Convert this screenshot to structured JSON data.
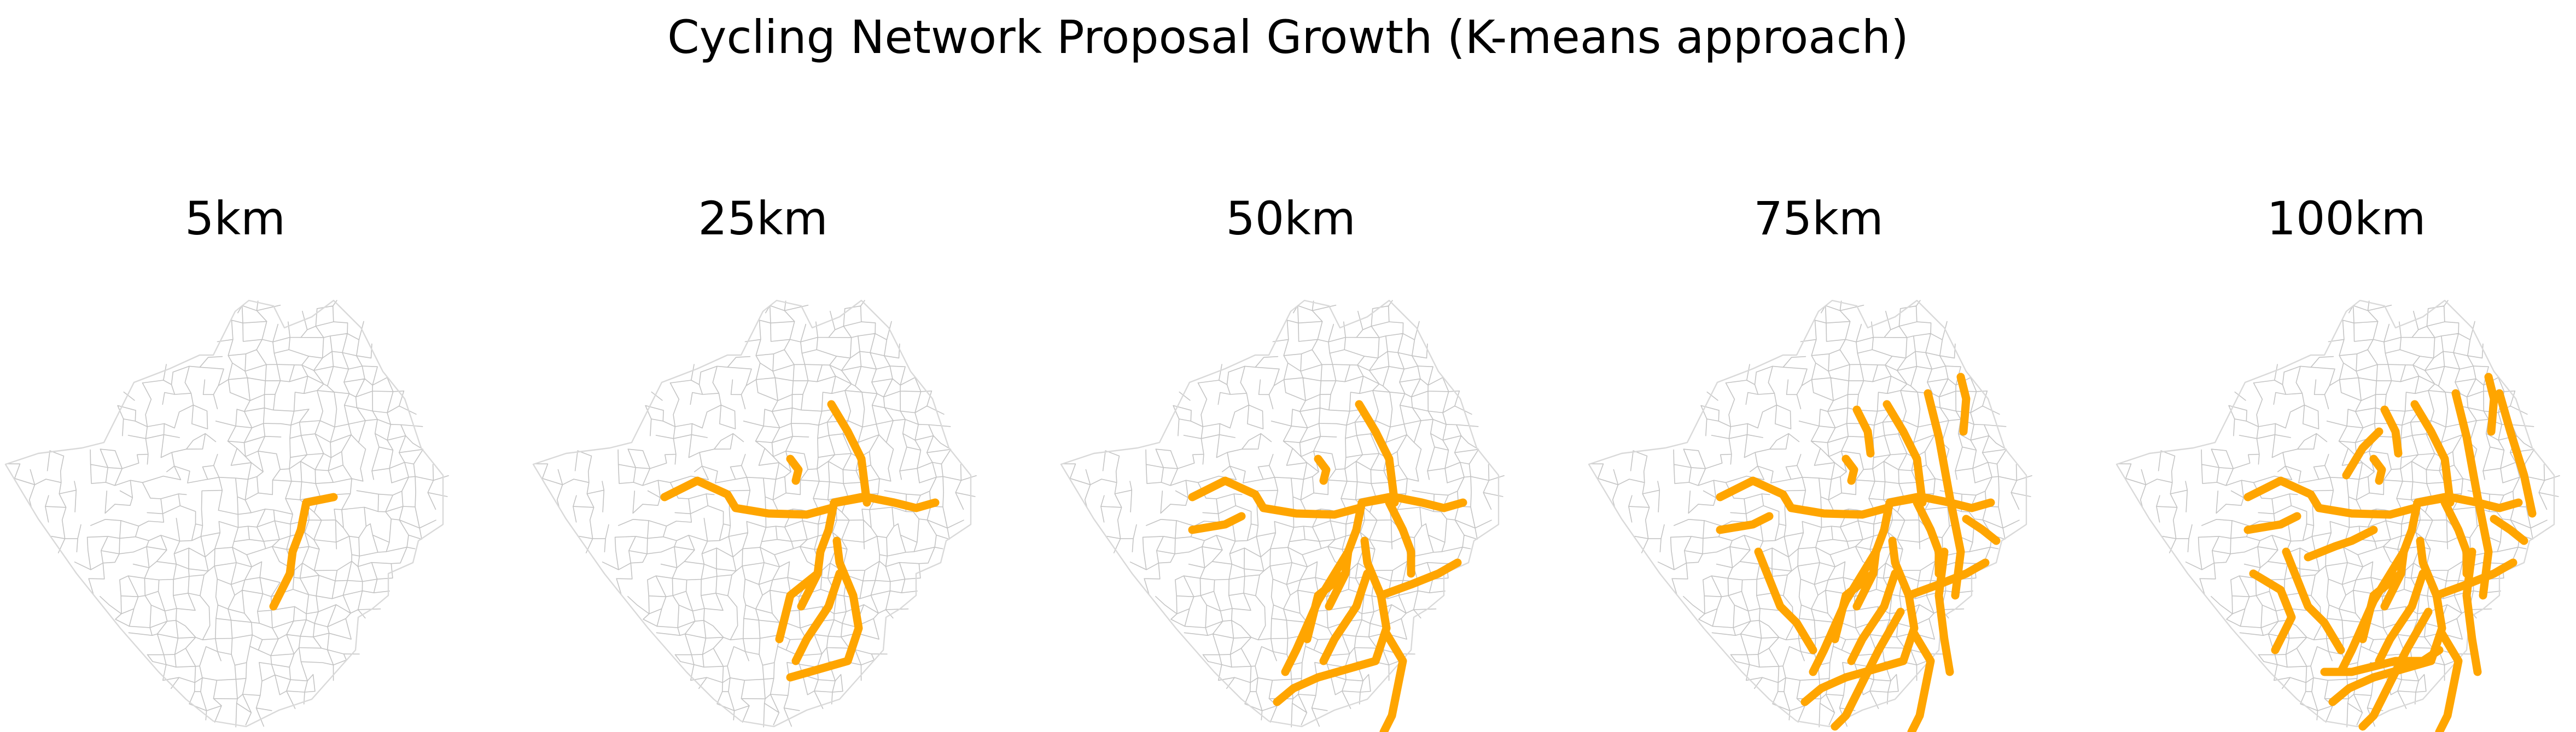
{
  "title": "Cycling Network Proposal Growth (K-means approach)",
  "colors": {
    "background": "#ffffff",
    "boundary": "#c4c4c4",
    "outline": "#d9d9d9",
    "network": "#ffa500",
    "text": "#000000"
  },
  "panels": [
    {
      "label": "5km",
      "length_km": 5
    },
    {
      "label": "25km",
      "length_km": 25
    },
    {
      "label": "50km",
      "length_km": 50
    },
    {
      "label": "75km",
      "length_km": 75
    },
    {
      "label": "100km",
      "length_km": 100
    }
  ]
}
